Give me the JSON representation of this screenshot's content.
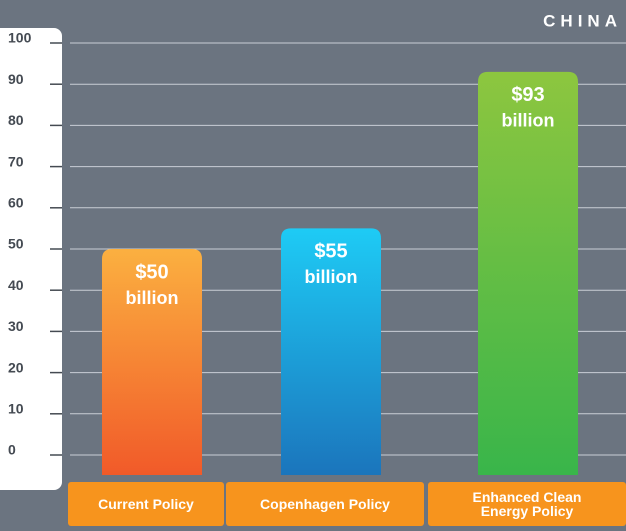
{
  "chart_data": {
    "type": "bar",
    "title": "CHINA",
    "categories": [
      "Current Policy",
      "Copenhagen Policy",
      "Enhanced Clean Energy Policy"
    ],
    "values": [
      50,
      55,
      93
    ],
    "value_labels": [
      [
        "$50",
        "billion"
      ],
      [
        "$55",
        "billion"
      ],
      [
        "$93",
        "billion"
      ]
    ],
    "colors": [
      [
        "#fbb040",
        "#f15a29"
      ],
      [
        "#1ecbf5",
        "#1b75bc"
      ],
      [
        "#8dc63f",
        "#39b54a"
      ]
    ],
    "ylim": [
      0,
      100
    ],
    "yticks": [
      0,
      10,
      20,
      30,
      40,
      50,
      60,
      70,
      80,
      90,
      100
    ],
    "grid": true
  }
}
